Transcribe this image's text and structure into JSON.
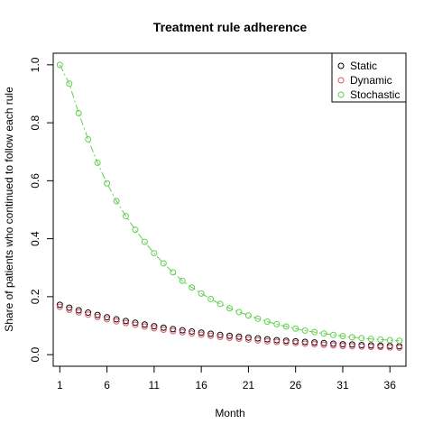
{
  "chart_data": {
    "type": "scatter",
    "title": "Treatment rule adherence",
    "xlabel": "Month",
    "ylabel": "Share of patients who continued to follow each rule",
    "xlim": [
      0.3,
      37.7
    ],
    "ylim": [
      -0.04,
      1.04
    ],
    "x_ticks": [
      1,
      6,
      11,
      16,
      21,
      26,
      31,
      36
    ],
    "y_ticks": [
      0.0,
      0.2,
      0.4,
      0.6,
      0.8,
      1.0
    ],
    "x_tick_labels": [
      "1",
      "6",
      "11",
      "16",
      "21",
      "26",
      "31",
      "36"
    ],
    "y_tick_labels": [
      "0.0",
      "0.2",
      "0.4",
      "0.6",
      "0.8",
      "1.0"
    ],
    "grid": false,
    "legend_position": "top-right",
    "x": [
      1,
      2,
      3,
      4,
      5,
      6,
      7,
      8,
      9,
      10,
      11,
      12,
      13,
      14,
      15,
      16,
      17,
      18,
      19,
      20,
      21,
      22,
      23,
      24,
      25,
      26,
      27,
      28,
      29,
      30,
      31,
      32,
      33,
      34,
      35,
      36,
      37
    ],
    "series": [
      {
        "name": "Static",
        "color": "#000000",
        "values": [
          0.172,
          0.162,
          0.153,
          0.145,
          0.137,
          0.129,
          0.122,
          0.116,
          0.11,
          0.104,
          0.098,
          0.093,
          0.088,
          0.084,
          0.08,
          0.076,
          0.072,
          0.068,
          0.065,
          0.062,
          0.059,
          0.056,
          0.053,
          0.05,
          0.048,
          0.046,
          0.044,
          0.042,
          0.04,
          0.038,
          0.036,
          0.035,
          0.033,
          0.032,
          0.031,
          0.03,
          0.029
        ]
      },
      {
        "name": "Dynamic",
        "color": "#DF536B",
        "values": [
          0.165,
          0.155,
          0.146,
          0.138,
          0.13,
          0.122,
          0.115,
          0.109,
          0.103,
          0.097,
          0.091,
          0.086,
          0.081,
          0.077,
          0.073,
          0.069,
          0.065,
          0.061,
          0.058,
          0.055,
          0.052,
          0.049,
          0.046,
          0.044,
          0.042,
          0.04,
          0.038,
          0.036,
          0.034,
          0.032,
          0.03,
          0.029,
          0.028,
          0.027,
          0.026,
          0.025,
          0.024
        ]
      },
      {
        "name": "Stochastic",
        "color": "#61D04F",
        "line": true,
        "values": [
          1.0,
          0.935,
          0.833,
          0.743,
          0.662,
          0.591,
          0.53,
          0.478,
          0.431,
          0.389,
          0.35,
          0.315,
          0.284,
          0.255,
          0.232,
          0.211,
          0.192,
          0.175,
          0.16,
          0.147,
          0.135,
          0.124,
          0.114,
          0.105,
          0.097,
          0.09,
          0.083,
          0.078,
          0.073,
          0.068,
          0.064,
          0.06,
          0.057,
          0.054,
          0.052,
          0.05,
          0.048
        ]
      }
    ]
  }
}
